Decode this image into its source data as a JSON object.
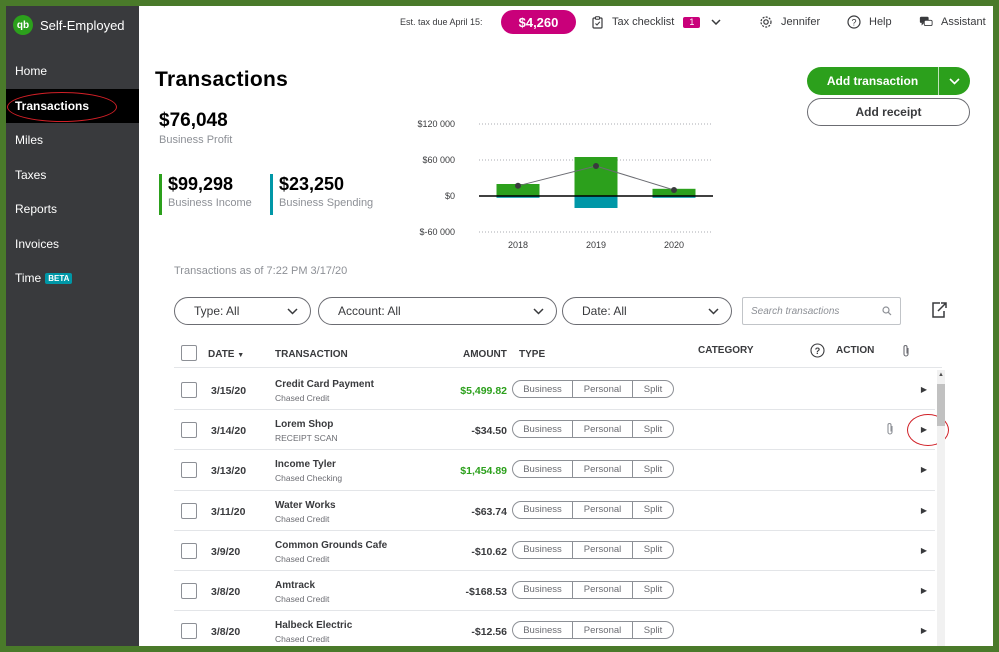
{
  "app": {
    "brand": "Self-Employed",
    "logo": "qb"
  },
  "sidebar": {
    "items": [
      {
        "label": "Home"
      },
      {
        "label": "Transactions"
      },
      {
        "label": "Miles"
      },
      {
        "label": "Taxes"
      },
      {
        "label": "Reports"
      },
      {
        "label": "Invoices"
      },
      {
        "label": "Time",
        "badge": "BETA"
      }
    ]
  },
  "topbar": {
    "est_tax_label": "Est. tax due April 15:",
    "est_tax_value": "$4,260",
    "checklist_label": "Tax checklist",
    "checklist_count": "1",
    "user": "Jennifer",
    "help": "Help",
    "assistant": "Assistant"
  },
  "header": {
    "title": "Transactions",
    "add_transaction": "Add transaction",
    "add_receipt": "Add receipt"
  },
  "summary": {
    "profit_value": "$76,048",
    "profit_label": "Business Profit",
    "income_value": "$99,298",
    "income_label": "Business Income",
    "spending_value": "$23,250",
    "spending_label": "Business Spending"
  },
  "chart_data": {
    "type": "bar",
    "categories": [
      "2018",
      "2019",
      "2020"
    ],
    "series": [
      {
        "values": [
          20000,
          65000,
          12000
        ],
        "color": "#2ca01c"
      },
      {
        "values": [
          -3000,
          -20000,
          -3000
        ],
        "color": "#0097a7"
      }
    ],
    "line": {
      "values": [
        17000,
        50000,
        10000
      ],
      "color": "#6b6c72"
    },
    "y_ticks": [
      "$120 000",
      "$60 000",
      "$0",
      "$-60 000"
    ],
    "y_tick_values": [
      120000,
      60000,
      0,
      -60000
    ],
    "ylim": [
      -60000,
      120000
    ],
    "grid": true
  },
  "as_of": "Transactions as of 7:22 PM 3/17/20",
  "filters": {
    "type": "Type: All",
    "account": "Account: All",
    "date": "Date: All",
    "search_placeholder": "Search transactions"
  },
  "table": {
    "headers": {
      "date": "DATE",
      "transaction": "TRANSACTION",
      "amount": "AMOUNT",
      "type": "TYPE",
      "category": "CATEGORY",
      "action": "ACTION"
    },
    "type_options": [
      "Business",
      "Personal",
      "Split"
    ],
    "rows": [
      {
        "date": "3/15/20",
        "name": "Credit Card Payment",
        "account": "Chased Credit",
        "amount": "$5,499.82",
        "positive": true
      },
      {
        "date": "3/14/20",
        "name": "Lorem Shop",
        "account": "RECEIPT SCAN",
        "amount": "-$34.50",
        "positive": false,
        "attachment": true
      },
      {
        "date": "3/13/20",
        "name": "Income Tyler",
        "account": "Chased Checking",
        "amount": "$1,454.89",
        "positive": true
      },
      {
        "date": "3/11/20",
        "name": "Water Works",
        "account": "Chased Credit",
        "amount": "-$63.74",
        "positive": false
      },
      {
        "date": "3/9/20",
        "name": "Common Grounds Cafe",
        "account": "Chased Credit",
        "amount": "-$10.62",
        "positive": false
      },
      {
        "date": "3/8/20",
        "name": "Amtrack",
        "account": "Chased Credit",
        "amount": "-$168.53",
        "positive": false
      },
      {
        "date": "3/8/20",
        "name": "Halbeck Electric",
        "account": "Chased Credit",
        "amount": "-$12.56",
        "positive": false
      }
    ]
  }
}
